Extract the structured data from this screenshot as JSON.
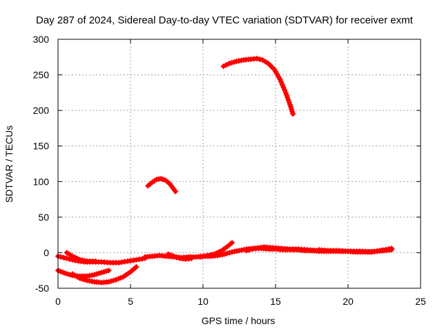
{
  "chart_data": {
    "type": "scatter",
    "title": "Day 287 of 2024, Sidereal Day-to-day VTEC variation (SDTVAR) for receiver exmt",
    "xlabel": "GPS time / hours",
    "ylabel": "SDTVAR / TECUs",
    "xlim": [
      0,
      25
    ],
    "ylim": [
      -50,
      300
    ],
    "xticks": [
      0,
      5,
      10,
      15,
      20,
      25
    ],
    "yticks": [
      -50,
      0,
      50,
      100,
      150,
      200,
      250,
      300
    ],
    "grid": true,
    "marker_color": "#ff0000",
    "series": [
      {
        "name": "arc-high",
        "points": [
          [
            11.4,
            262
          ],
          [
            11.8,
            266
          ],
          [
            12.3,
            269
          ],
          [
            12.8,
            271
          ],
          [
            13.3,
            272
          ],
          [
            13.7,
            273
          ],
          [
            14.1,
            271
          ],
          [
            14.5,
            266
          ],
          [
            14.9,
            258
          ],
          [
            15.3,
            244
          ],
          [
            15.7,
            225
          ],
          [
            16.0,
            208
          ],
          [
            16.2,
            195
          ]
        ]
      },
      {
        "name": "arc-mid",
        "points": [
          [
            6.2,
            94
          ],
          [
            6.5,
            99
          ],
          [
            6.8,
            103
          ],
          [
            7.1,
            104
          ],
          [
            7.4,
            102
          ],
          [
            7.7,
            97
          ],
          [
            8.1,
            86
          ]
        ]
      },
      {
        "name": "arc-low-a",
        "points": [
          [
            0.0,
            -25
          ],
          [
            0.5,
            -29
          ],
          [
            1.0,
            -32
          ],
          [
            1.5,
            -33
          ],
          [
            2.0,
            -33
          ],
          [
            2.5,
            -31
          ],
          [
            3.0,
            -28
          ],
          [
            3.5,
            -25
          ]
        ]
      },
      {
        "name": "arc-low-b",
        "points": [
          [
            1.0,
            -30
          ],
          [
            1.5,
            -36
          ],
          [
            2.0,
            -39
          ],
          [
            2.5,
            -41
          ],
          [
            3.0,
            -42
          ],
          [
            3.5,
            -41
          ],
          [
            4.0,
            -38
          ],
          [
            4.5,
            -34
          ],
          [
            5.0,
            -27
          ],
          [
            5.4,
            -20
          ]
        ]
      },
      {
        "name": "arc-low-c",
        "points": [
          [
            0.0,
            -5
          ],
          [
            0.6,
            -8
          ],
          [
            1.2,
            -11
          ],
          [
            1.8,
            -13
          ],
          [
            2.4,
            -13
          ],
          [
            3.0,
            -13
          ],
          [
            3.6,
            -14
          ],
          [
            4.2,
            -14
          ],
          [
            4.8,
            -12
          ],
          [
            5.4,
            -10
          ],
          [
            6.0,
            -8
          ]
        ]
      },
      {
        "name": "arc-low-d",
        "points": [
          [
            0.6,
            0
          ],
          [
            1.0,
            -5
          ],
          [
            1.5,
            -10
          ],
          [
            2.0,
            -12
          ],
          [
            2.6,
            -12
          ]
        ]
      },
      {
        "name": "arc-base-1",
        "points": [
          [
            6.0,
            -6
          ],
          [
            6.5,
            -5
          ],
          [
            7.0,
            -4
          ],
          [
            7.5,
            -5
          ],
          [
            8.0,
            -6
          ],
          [
            8.5,
            -7
          ],
          [
            9.0,
            -6
          ],
          [
            9.5,
            -6
          ],
          [
            10.0,
            -5
          ],
          [
            10.5,
            -5
          ],
          [
            11.0,
            -4
          ],
          [
            11.5,
            -2
          ],
          [
            12.0,
            1
          ],
          [
            12.5,
            3
          ],
          [
            13.0,
            5
          ],
          [
            13.5,
            6
          ],
          [
            14.0,
            6
          ],
          [
            14.5,
            5
          ],
          [
            15.0,
            5
          ],
          [
            15.5,
            4
          ],
          [
            16.0,
            4
          ],
          [
            16.5,
            4
          ],
          [
            17.0,
            3
          ],
          [
            17.5,
            3
          ],
          [
            18.0,
            2
          ],
          [
            18.5,
            2
          ],
          [
            19.0,
            2
          ],
          [
            19.5,
            2
          ],
          [
            20.0,
            2
          ],
          [
            20.5,
            1
          ],
          [
            21.0,
            1
          ],
          [
            21.5,
            1
          ],
          [
            22.0,
            2
          ],
          [
            22.5,
            3
          ],
          [
            23.0,
            4
          ]
        ]
      },
      {
        "name": "arc-base-2",
        "points": [
          [
            7.6,
            -2
          ],
          [
            8.0,
            -5
          ],
          [
            8.4,
            -8
          ],
          [
            8.8,
            -9
          ],
          [
            9.2,
            -8
          ]
        ]
      },
      {
        "name": "arc-base-3",
        "points": [
          [
            9.8,
            -6
          ],
          [
            10.3,
            -4
          ],
          [
            10.8,
            -2
          ],
          [
            11.3,
            3
          ],
          [
            11.7,
            9
          ],
          [
            12.0,
            14
          ]
        ]
      },
      {
        "name": "arc-base-4",
        "points": [
          [
            13.0,
            3
          ],
          [
            13.6,
            6
          ],
          [
            14.2,
            8
          ],
          [
            14.8,
            7
          ],
          [
            15.4,
            6
          ],
          [
            16.0,
            5
          ],
          [
            16.6,
            5
          ],
          [
            17.2,
            4
          ],
          [
            17.8,
            3
          ],
          [
            18.4,
            3
          ]
        ]
      },
      {
        "name": "arc-base-5",
        "points": [
          [
            18.0,
            4
          ],
          [
            18.6,
            3
          ],
          [
            19.2,
            3
          ],
          [
            19.8,
            2
          ],
          [
            20.4,
            2
          ],
          [
            21.0,
            2
          ],
          [
            21.6,
            1
          ],
          [
            22.2,
            3
          ],
          [
            22.8,
            5
          ],
          [
            23.0,
            6
          ]
        ]
      }
    ]
  }
}
